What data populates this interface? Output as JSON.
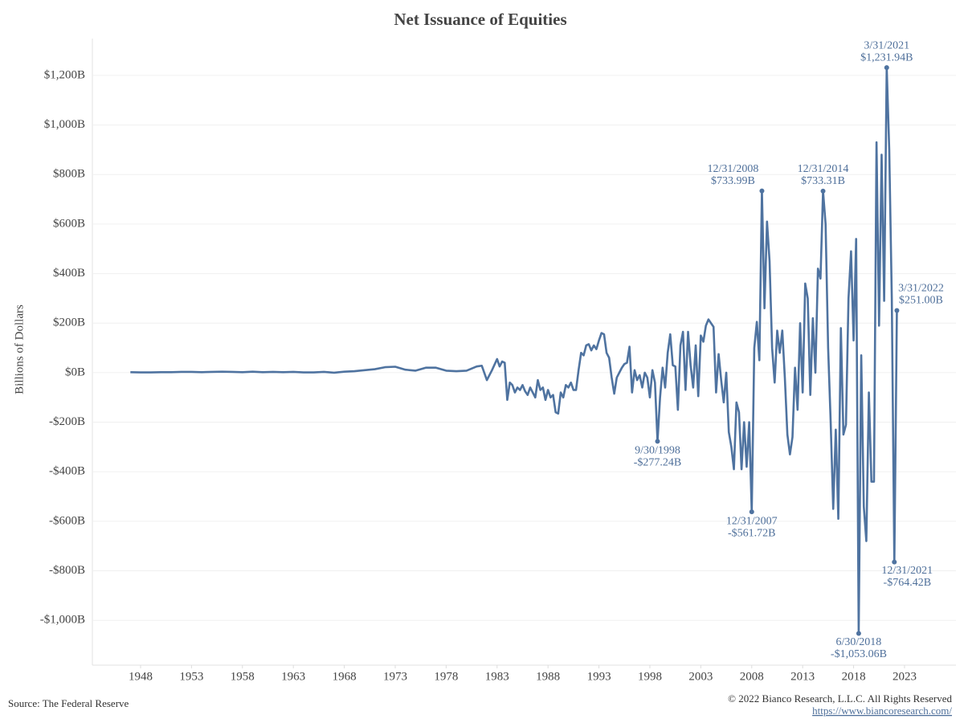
{
  "chart_data": {
    "type": "line",
    "title": "Net Issuance of Equities",
    "ylabel": "Billions of Dollars",
    "source": "Source: The Federal Reserve",
    "copyright": "© 2022 Bianco Research, L.L.C. All Rights Reserved",
    "url": "https://www.biancoresearch.com/",
    "color": "#4f73a0",
    "grid": true,
    "xlim": [
      1943.27,
      2028.05
    ],
    "ylim": [
      -1181,
      1349
    ],
    "xticks": [
      1948,
      1953,
      1958,
      1963,
      1968,
      1973,
      1978,
      1983,
      1988,
      1993,
      1998,
      2003,
      2008,
      2013,
      2018,
      2023
    ],
    "yticks": [
      {
        "value": -1000,
        "label": "-$1,000B"
      },
      {
        "value": -800,
        "label": "-$800B"
      },
      {
        "value": -600,
        "label": "-$600B"
      },
      {
        "value": -400,
        "label": "-$400B"
      },
      {
        "value": -200,
        "label": "-$200B"
      },
      {
        "value": 0,
        "label": "$0B"
      },
      {
        "value": 200,
        "label": "$200B"
      },
      {
        "value": 400,
        "label": "$400B"
      },
      {
        "value": 600,
        "label": "$600B"
      },
      {
        "value": 800,
        "label": "$800B"
      },
      {
        "value": 1000,
        "label": "$1,000B"
      },
      {
        "value": 1200,
        "label": "$1,200B"
      }
    ],
    "x": [
      1947,
      1948,
      1949,
      1950,
      1951,
      1952,
      1953,
      1954,
      1955,
      1956,
      1957,
      1958,
      1959,
      1960,
      1961,
      1962,
      1963,
      1964,
      1965,
      1966,
      1967,
      1968,
      1969,
      1970,
      1971,
      1972,
      1973,
      1974,
      1975,
      1976,
      1977,
      1978,
      1979,
      1980,
      1981,
      1981.5,
      1982,
      1982.5,
      1983,
      1983.25,
      1983.5,
      1983.75,
      1984,
      1984.25,
      1984.5,
      1984.75,
      1985,
      1985.25,
      1985.5,
      1985.75,
      1986,
      1986.25,
      1986.5,
      1986.75,
      1987,
      1987.25,
      1987.5,
      1987.75,
      1988,
      1988.25,
      1988.5,
      1988.75,
      1989,
      1989.25,
      1989.5,
      1989.75,
      1990,
      1990.25,
      1990.5,
      1990.75,
      1991,
      1991.25,
      1991.5,
      1991.75,
      1992,
      1992.25,
      1992.5,
      1992.75,
      1993,
      1993.25,
      1993.5,
      1993.75,
      1994,
      1994.25,
      1994.5,
      1994.75,
      1995,
      1995.25,
      1995.5,
      1995.75,
      1996,
      1996.25,
      1996.5,
      1996.75,
      1997,
      1997.25,
      1997.5,
      1997.75,
      1998,
      1998.25,
      1998.5,
      1998.75,
      1999,
      1999.25,
      1999.5,
      1999.75,
      2000,
      2000.25,
      2000.5,
      2000.75,
      2001,
      2001.25,
      2001.5,
      2001.75,
      2002,
      2002.25,
      2002.5,
      2002.75,
      2003,
      2003.25,
      2003.5,
      2003.75,
      2004,
      2004.25,
      2004.5,
      2004.75,
      2005,
      2005.25,
      2005.5,
      2005.75,
      2006,
      2006.25,
      2006.5,
      2006.75,
      2007,
      2007.25,
      2007.5,
      2007.75,
      2008,
      2008.25,
      2008.5,
      2008.75,
      2009,
      2009.25,
      2009.5,
      2009.75,
      2010,
      2010.25,
      2010.5,
      2010.75,
      2011,
      2011.25,
      2011.5,
      2011.75,
      2012,
      2012.25,
      2012.5,
      2012.75,
      2013,
      2013.25,
      2013.5,
      2013.75,
      2014,
      2014.25,
      2014.5,
      2014.75,
      2015,
      2015.25,
      2015.5,
      2015.75,
      2016,
      2016.25,
      2016.5,
      2016.75,
      2017,
      2017.25,
      2017.5,
      2017.75,
      2018,
      2018.25,
      2018.5,
      2018.75,
      2019,
      2019.25,
      2019.5,
      2019.75,
      2020,
      2020.25,
      2020.5,
      2020.75,
      2021,
      2021.25,
      2021.5,
      2021.75,
      2022,
      2022.25
    ],
    "values": [
      2,
      1,
      1,
      2,
      2,
      3,
      3,
      2,
      3,
      4,
      3,
      2,
      4,
      2,
      3,
      2,
      3,
      1,
      1,
      3,
      0,
      4,
      6,
      10,
      14,
      22,
      24,
      12,
      8,
      20,
      20,
      8,
      6,
      8,
      25,
      28,
      -30,
      10,
      55,
      25,
      45,
      40,
      -110,
      -40,
      -50,
      -80,
      -60,
      -70,
      -50,
      -75,
      -90,
      -60,
      -80,
      -100,
      -30,
      -70,
      -60,
      -110,
      -70,
      -100,
      -90,
      -160,
      -165,
      -80,
      -100,
      -50,
      -60,
      -40,
      -70,
      -70,
      10,
      80,
      70,
      110,
      115,
      90,
      110,
      95,
      130,
      160,
      155,
      80,
      60,
      -20,
      -85,
      -20,
      0,
      20,
      35,
      40,
      105,
      -80,
      10,
      -30,
      -10,
      -60,
      0,
      -20,
      -100,
      10,
      -40,
      -277.24,
      -100,
      20,
      -60,
      80,
      155,
      30,
      25,
      -150,
      110,
      165,
      -70,
      165,
      30,
      -60,
      110,
      -95,
      150,
      125,
      190,
      215,
      200,
      185,
      -80,
      75,
      -30,
      -120,
      0,
      -240,
      -300,
      -390,
      -120,
      -160,
      -390,
      -200,
      -380,
      -200,
      -561.72,
      100,
      205,
      50,
      733.99,
      260,
      610,
      450,
      100,
      -40,
      170,
      80,
      170,
      -20,
      -250,
      -330,
      -260,
      20,
      -150,
      200,
      -80,
      360,
      300,
      -90,
      220,
      0,
      420,
      380,
      733.31,
      600,
      100,
      -200,
      -550,
      -230,
      -590,
      180,
      -250,
      -210,
      300,
      490,
      130,
      540,
      -1053.06,
      70,
      -540,
      -680,
      -80,
      -440,
      -440,
      930,
      190,
      880,
      290,
      1231.94,
      900,
      300,
      -764.42,
      251.0
    ],
    "annotations": [
      {
        "lines": [
          "3/31/2021",
          "$1,231.94B"
        ],
        "x": 2021.25,
        "y": 1231.94
      },
      {
        "lines": [
          "12/31/2008",
          "$733.99B"
        ],
        "x": 2009,
        "y": 733.99
      },
      {
        "lines": [
          "12/31/2014",
          "$733.31B"
        ],
        "x": 2015,
        "y": 733.31
      },
      {
        "lines": [
          "3/31/2022",
          "$251.00B"
        ],
        "x": 2022.25,
        "y": 251.0
      },
      {
        "lines": [
          "9/30/1998",
          "-$277.24B"
        ],
        "x": 1998.75,
        "y": -277.24
      },
      {
        "lines": [
          "12/31/2007",
          "-$561.72B"
        ],
        "x": 2008,
        "y": -561.72
      },
      {
        "lines": [
          "6/30/2018",
          "-$1,053.06B"
        ],
        "x": 2018.5,
        "y": -1053.06
      },
      {
        "lines": [
          "12/31/2021",
          "-$764.42B"
        ],
        "x": 2022,
        "y": -764.42
      }
    ]
  }
}
